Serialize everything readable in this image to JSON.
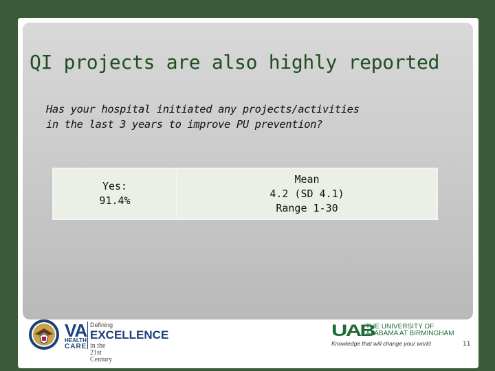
{
  "slide": {
    "title": "QI projects are also highly reported",
    "question_line1": "Has your hospital initiated any projects/activities",
    "question_line2": "in the last 3 years to improve PU prevention?",
    "table": {
      "left": {
        "line1": "Yes:",
        "line2": "91.4%"
      },
      "right": {
        "line1": "Mean",
        "line2": "4.2 (SD 4.1)",
        "line3": "Range 1-30"
      }
    },
    "page_number": "11"
  },
  "footer": {
    "va": {
      "letters": "VA",
      "health": "HEALTH",
      "care": "CARE",
      "defining": "Defining",
      "excellence": "EXCELLENCE",
      "century": "in the 21st Century",
      "seal_icon": "va-seal-icon"
    },
    "uab": {
      "mark": "UAB",
      "name_line1": "THE UNIVERSITY OF",
      "name_line2": "ALABAMA AT BIRMINGHAM",
      "tagline": "Knowledge that will change your world"
    }
  },
  "colors": {
    "background": "#3a5a38",
    "title": "#1f4e20",
    "cell": "#ebf0e6",
    "va_blue": "#1d3f7a",
    "uab_green": "#1e6b34"
  }
}
